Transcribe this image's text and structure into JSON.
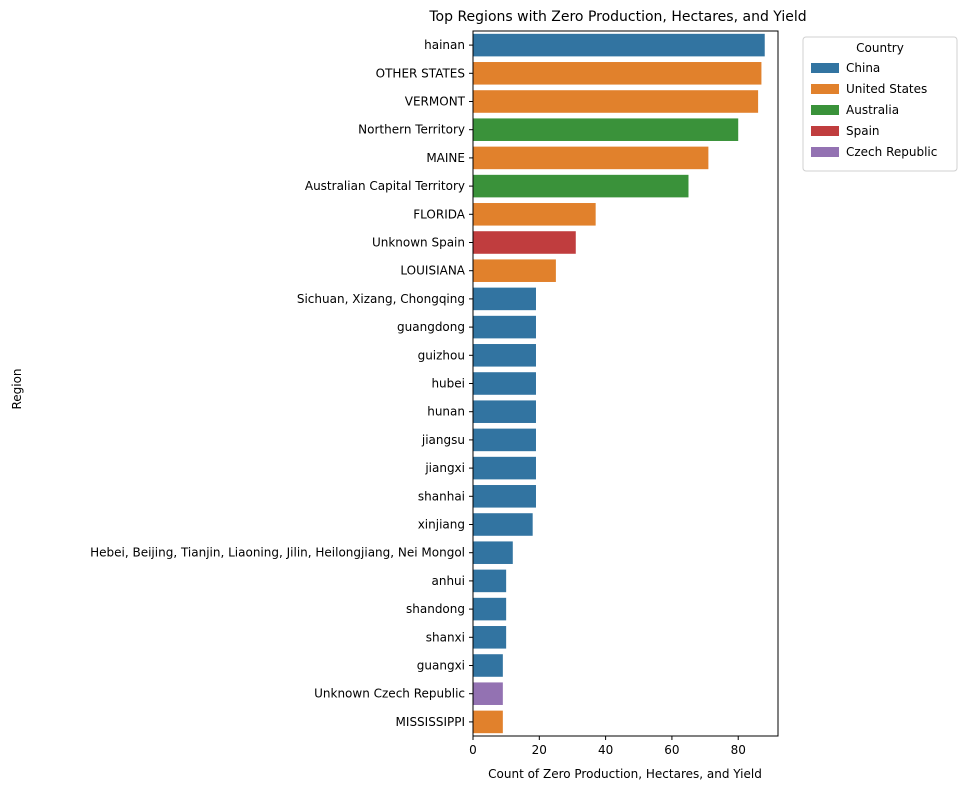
{
  "chart_data": {
    "type": "bar",
    "orientation": "horizontal",
    "title": "Top Regions with Zero Production, Hectares, and Yield",
    "xlabel": "Count of Zero Production, Hectares, and Yield",
    "ylabel": "Region",
    "xlim": [
      0,
      92
    ],
    "xticks": [
      0,
      20,
      40,
      60,
      80
    ],
    "grid": false,
    "legend": {
      "title": "Country",
      "placement": "outside-upper-right",
      "entries": [
        {
          "name": "China",
          "color": "#3274a1"
        },
        {
          "name": "United States",
          "color": "#e1812c"
        },
        {
          "name": "Australia",
          "color": "#3a923a"
        },
        {
          "name": "Spain",
          "color": "#c03d3e"
        },
        {
          "name": "Czech Republic",
          "color": "#9372b2"
        }
      ]
    },
    "bars": [
      {
        "region": "hainan",
        "country": "China",
        "value": 88
      },
      {
        "region": "OTHER STATES",
        "country": "United States",
        "value": 87
      },
      {
        "region": "VERMONT",
        "country": "United States",
        "value": 86
      },
      {
        "region": "Northern Territory",
        "country": "Australia",
        "value": 80
      },
      {
        "region": "MAINE",
        "country": "United States",
        "value": 71
      },
      {
        "region": "Australian Capital Territory",
        "country": "Australia",
        "value": 65
      },
      {
        "region": "FLORIDA",
        "country": "United States",
        "value": 37
      },
      {
        "region": "Unknown Spain",
        "country": "Spain",
        "value": 31
      },
      {
        "region": "LOUISIANA",
        "country": "United States",
        "value": 25
      },
      {
        "region": "Sichuan, Xizang, Chongqing",
        "country": "China",
        "value": 19
      },
      {
        "region": "guangdong",
        "country": "China",
        "value": 19
      },
      {
        "region": "guizhou",
        "country": "China",
        "value": 19
      },
      {
        "region": "hubei",
        "country": "China",
        "value": 19
      },
      {
        "region": "hunan",
        "country": "China",
        "value": 19
      },
      {
        "region": "jiangsu",
        "country": "China",
        "value": 19
      },
      {
        "region": "jiangxi",
        "country": "China",
        "value": 19
      },
      {
        "region": "shanhai",
        "country": "China",
        "value": 19
      },
      {
        "region": "xinjiang",
        "country": "China",
        "value": 18
      },
      {
        "region": "Hebei, Beijing, Tianjin, Liaoning, Jilin, Heilongjiang, Nei Mongol",
        "country": "China",
        "value": 12
      },
      {
        "region": "anhui",
        "country": "China",
        "value": 10
      },
      {
        "region": "shandong",
        "country": "China",
        "value": 10
      },
      {
        "region": "shanxi",
        "country": "China",
        "value": 10
      },
      {
        "region": "guangxi",
        "country": "China",
        "value": 9
      },
      {
        "region": "Unknown Czech Republic",
        "country": "Czech Republic",
        "value": 9
      },
      {
        "region": "MISSISSIPPI",
        "country": "United States",
        "value": 9
      }
    ]
  }
}
